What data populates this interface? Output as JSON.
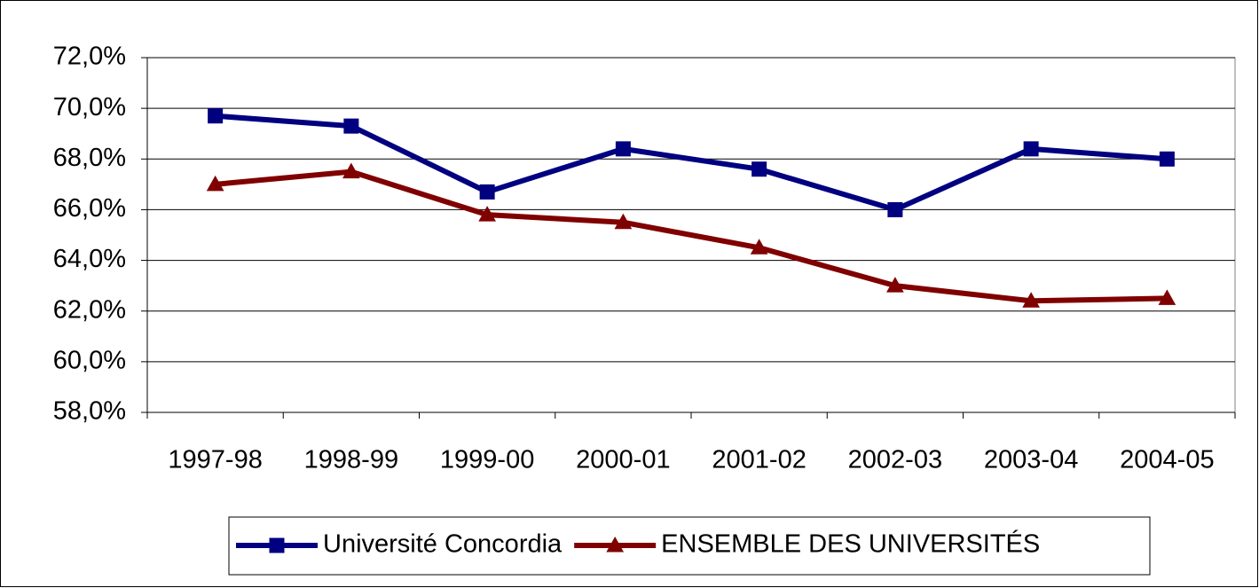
{
  "chart_data": {
    "type": "line",
    "categories": [
      "1997-98",
      "1998-99",
      "1999-00",
      "2000-01",
      "2001-02",
      "2002-03",
      "2003-04",
      "2004-05"
    ],
    "series": [
      {
        "name": "Université Concordia",
        "color": "#000080",
        "marker": "square",
        "values": [
          69.7,
          69.3,
          66.7,
          68.4,
          67.6,
          66.0,
          68.4,
          68.0
        ]
      },
      {
        "name": "ENSEMBLE DES UNIVERSITÉS",
        "color": "#800000",
        "marker": "triangle",
        "values": [
          67.0,
          67.5,
          65.8,
          65.5,
          64.5,
          63.0,
          62.4,
          62.5
        ]
      }
    ],
    "ylim": [
      58,
      72
    ],
    "yticks": [
      {
        "value": 58,
        "label": "58,0%"
      },
      {
        "value": 60,
        "label": "60,0%"
      },
      {
        "value": 62,
        "label": "62,0%"
      },
      {
        "value": 64,
        "label": "64,0%"
      },
      {
        "value": 66,
        "label": "66,0%"
      },
      {
        "value": 68,
        "label": "68,0%"
      },
      {
        "value": 70,
        "label": "70,0%"
      },
      {
        "value": 72,
        "label": "72,0%"
      }
    ],
    "grid": true,
    "legend": "bottom"
  }
}
